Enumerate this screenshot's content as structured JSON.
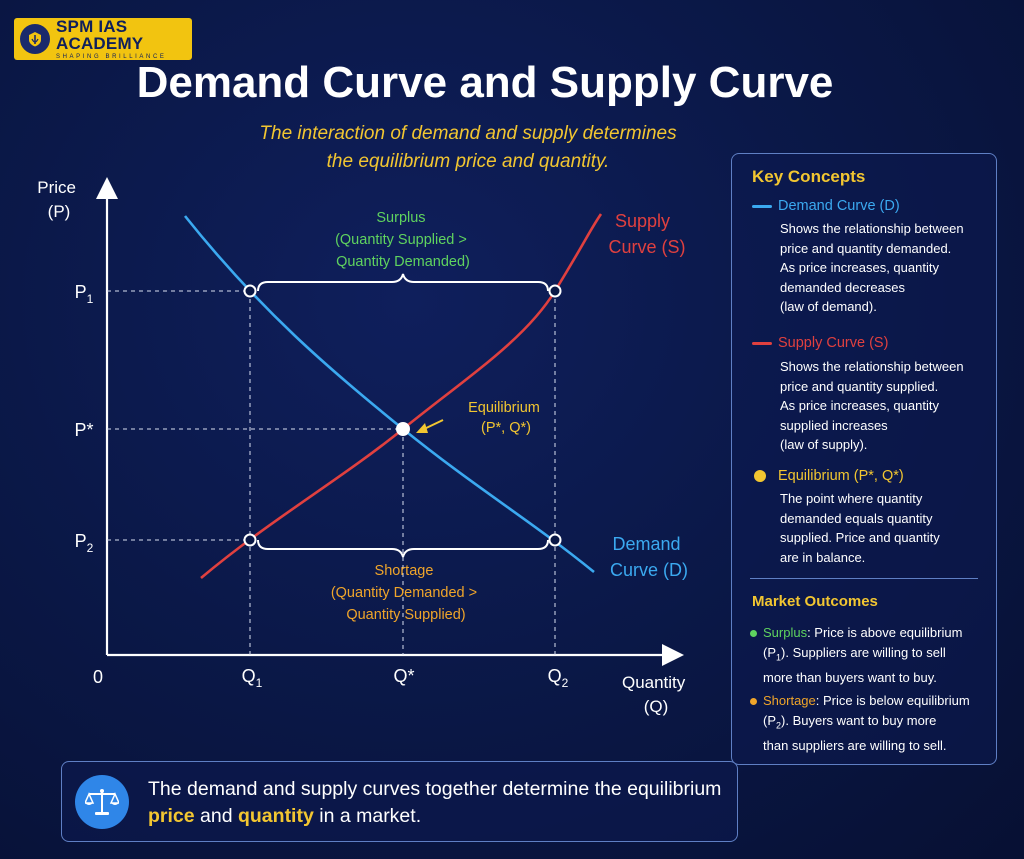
{
  "brand": {
    "name": "SPM IAS ACADEMY",
    "tagline": "SHAPING BRILLIANCE"
  },
  "title": "Demand Curve and Supply Curve",
  "subtitle": {
    "line1": "The interaction of demand and supply determines",
    "line2": "the equilibrium price and quantity."
  },
  "chart": {
    "y_axis_label": [
      "Price",
      "(P)"
    ],
    "x_axis_label": [
      "Quantity",
      "(Q)"
    ],
    "origin_label": "0",
    "y_ticks": [
      {
        "key": "p1",
        "base": "P",
        "sub": "1"
      },
      {
        "key": "pstar",
        "base": "P*",
        "sub": ""
      },
      {
        "key": "p2",
        "base": "P",
        "sub": "2"
      }
    ],
    "x_ticks": [
      {
        "key": "q1",
        "base": "Q",
        "sub": "1"
      },
      {
        "key": "qstar",
        "base": "Q*",
        "sub": ""
      },
      {
        "key": "q2",
        "base": "Q",
        "sub": "2"
      }
    ],
    "supply_label": [
      "Supply",
      "Curve (S)"
    ],
    "demand_label": [
      "Demand",
      "Curve (D)"
    ],
    "equilibrium_label": [
      "Equilibrium",
      "(P*, Q*)"
    ],
    "surplus_label": [
      "Surplus",
      "(Quantity Supplied >",
      "Quantity Demanded)"
    ],
    "shortage_label": [
      "Shortage",
      "(Quantity Demanded >",
      "Quantity Supplied)"
    ]
  },
  "key_concepts": {
    "heading": "Key Concepts",
    "demand": {
      "title": "Demand Curve (D)",
      "lines": [
        "Shows the relationship between",
        "price and quantity demanded.",
        "As price increases, quantity",
        "demanded decreases",
        "(law of demand)."
      ]
    },
    "supply": {
      "title": "Supply Curve (S)",
      "lines": [
        "Shows the relationship between",
        "price and quantity supplied.",
        "As price increases, quantity",
        "supplied increases",
        "(law of supply)."
      ]
    },
    "equilibrium": {
      "title": "Equilibrium (P*, Q*)",
      "lines": [
        "The point where quantity",
        "demanded equals quantity",
        "supplied. Price and quantity",
        "are in balance."
      ]
    }
  },
  "market_outcomes": {
    "heading": "Market Outcomes",
    "surplus": {
      "label": "Surplus",
      "line1a": ": Price is above equilibrium",
      "line2a": "(P",
      "line2sub": "1",
      "line2b": "). Suppliers are willing to sell",
      "line3": "more than buyers want to buy."
    },
    "shortage": {
      "label": "Shortage",
      "line1a": ": Price is below equilibrium",
      "line2a": "(P",
      "line2sub": "2",
      "line2b": "). Buyers want to buy more",
      "line3": "than suppliers are willing to sell."
    }
  },
  "footer": {
    "part1": "The demand and supply curves together determine the equilibrium",
    "price": "price",
    "and": " and ",
    "quantity": "quantity",
    "part2": " in a market."
  },
  "colors": {
    "demand": "#3ba9f0",
    "supply": "#e0403f",
    "equilibrium": "#f2c631",
    "surplus": "#5fd35f",
    "shortage": "#f0a52a",
    "accent": "#f2c631"
  }
}
